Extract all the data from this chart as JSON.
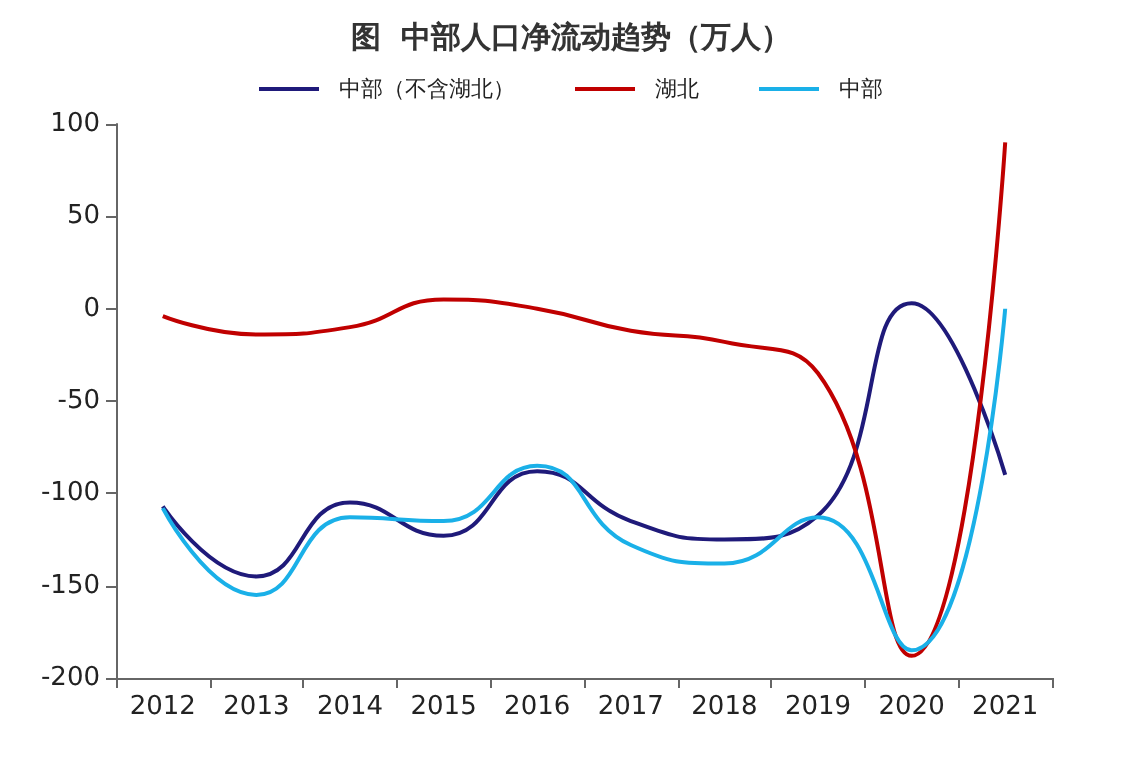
{
  "chart_data": {
    "type": "line",
    "title": "图  中部人口净流动趋势（万人）",
    "categories": [
      "2012",
      "2013",
      "2014",
      "2015",
      "2016",
      "2017",
      "2018",
      "2019",
      "2020",
      "2021"
    ],
    "series": [
      {
        "name": "中部（不含湖北）",
        "color": "#1f1a7a",
        "values": [
          -107,
          -145,
          -105,
          -123,
          -88,
          -115,
          -125,
          -112,
          3,
          -90
        ]
      },
      {
        "name": "湖北",
        "color": "#c00000",
        "values": [
          -4,
          -14,
          -10,
          5,
          0,
          -12,
          -18,
          -35,
          -188,
          90
        ]
      },
      {
        "name": "中部",
        "color": "#1ab0e8",
        "values": [
          -108,
          -155,
          -113,
          -115,
          -85,
          -128,
          -138,
          -113,
          -185,
          0
        ]
      }
    ],
    "ylim": [
      -200,
      100
    ],
    "yticks": [
      -200,
      -150,
      -100,
      -50,
      0,
      50,
      100
    ],
    "grid": false,
    "legend": "top",
    "marker": "none",
    "line_style": "solid"
  }
}
